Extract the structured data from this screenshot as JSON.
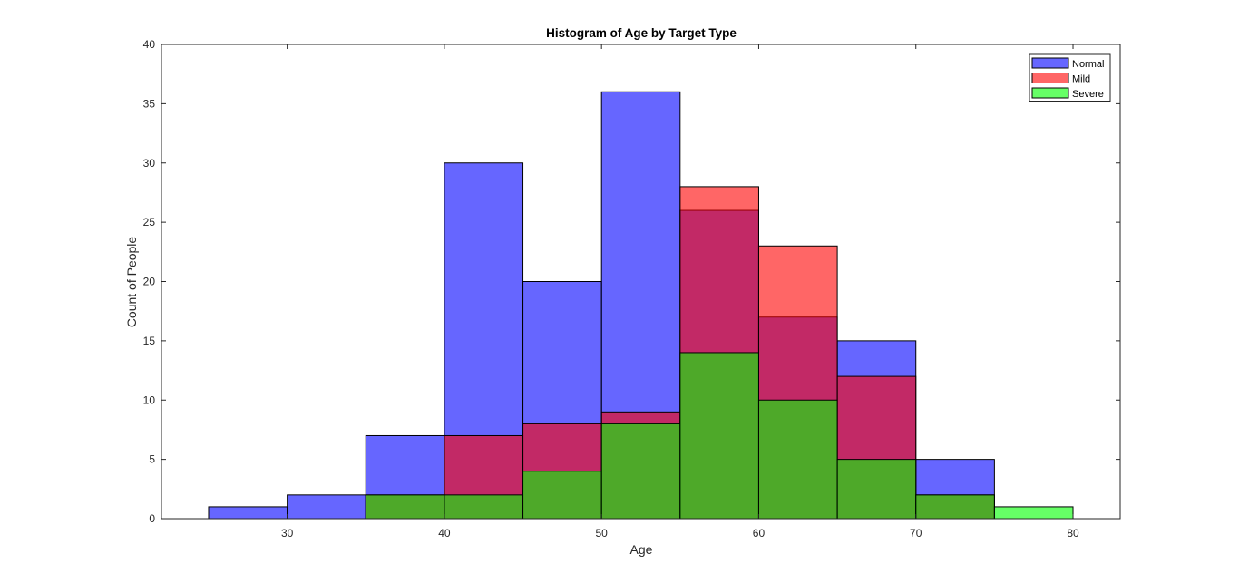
{
  "chart_data": {
    "type": "bar",
    "subtype": "overlaid-histogram",
    "title": "Histogram of Age by Target Type",
    "xlabel": "Age",
    "ylabel": "Count of People",
    "xlim": [
      22,
      83
    ],
    "ylim": [
      0,
      40
    ],
    "xticks": [
      30,
      40,
      50,
      60,
      70,
      80
    ],
    "yticks": [
      0,
      5,
      10,
      15,
      20,
      25,
      30,
      35,
      40
    ],
    "bin_width": 5,
    "bin_edges": [
      25,
      30,
      35,
      40,
      45,
      50,
      55,
      60,
      65,
      70,
      75,
      80
    ],
    "legend_position": "top-right",
    "grid": false,
    "series": [
      {
        "name": "Normal",
        "color": "#0000ff",
        "opacity": 0.6,
        "bin_starts": [
          25,
          30,
          35,
          40,
          45,
          50,
          55,
          60,
          65,
          70
        ],
        "counts": [
          1,
          2,
          7,
          30,
          20,
          36,
          26,
          17,
          15,
          5
        ]
      },
      {
        "name": "Mild",
        "color": "#ff0000",
        "opacity": 0.6,
        "bin_starts": [
          35,
          40,
          45,
          50,
          55,
          60,
          65,
          70
        ],
        "counts": [
          2,
          7,
          8,
          9,
          28,
          23,
          12,
          2
        ]
      },
      {
        "name": "Severe",
        "color": "#00ff00",
        "opacity": 0.6,
        "bin_starts": [
          35,
          40,
          45,
          50,
          55,
          60,
          65,
          70,
          75
        ],
        "counts": [
          2,
          2,
          4,
          8,
          14,
          10,
          5,
          2,
          1
        ]
      }
    ]
  }
}
